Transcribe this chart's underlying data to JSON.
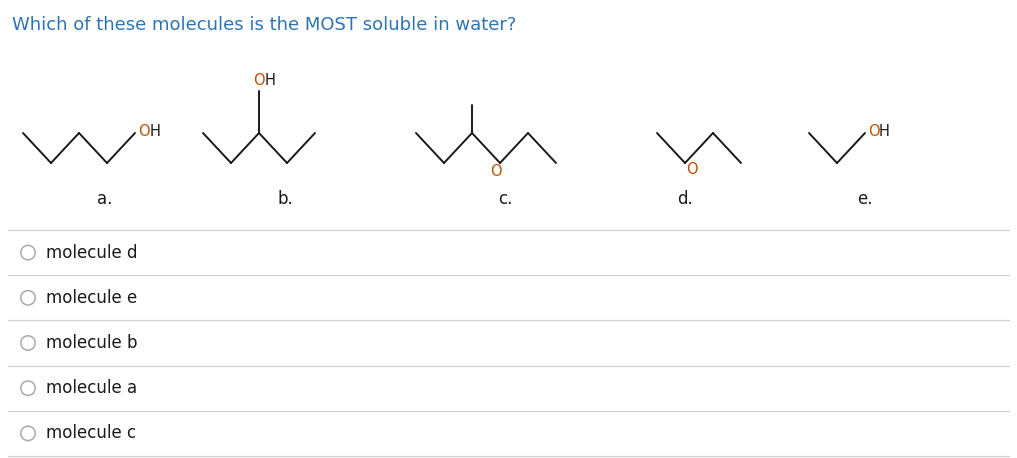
{
  "title": "Which of these molecules is the MOST soluble in water?",
  "title_color": "#2e74b5",
  "title_fontsize": 13,
  "bg_color": "#ffffff",
  "options": [
    "molecule d",
    "molecule e",
    "molecule b",
    "molecule a",
    "molecule c"
  ],
  "option_text_color": "#1a1a1a",
  "option_fontsize": 12,
  "line_color": "#d0d0d0",
  "molecule_labels": [
    "a.",
    "b.",
    "c.",
    "d.",
    "e."
  ],
  "label_color": "#1a1a1a",
  "bond_color": "#1a1a1a",
  "atom_color": "#c05000",
  "oh_color_O": "#c05000",
  "oh_color_H": "#1a1a1a"
}
